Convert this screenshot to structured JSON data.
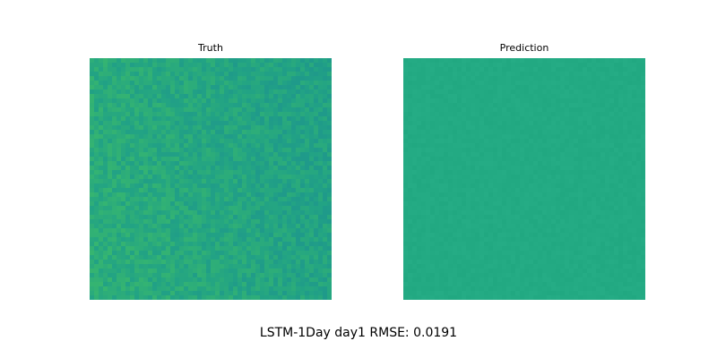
{
  "caption": "LSTM-1Day day1 RMSE: 0.0191",
  "chart_data": [
    {
      "type": "heatmap",
      "title": "Truth",
      "grid": false,
      "colormap": "viridis",
      "colors": {
        "base": "#22a384",
        "low": "#1f9a8a",
        "high": "#3cbb6a"
      }
    },
    {
      "type": "heatmap",
      "title": "Prediction",
      "grid": false,
      "colormap": "viridis",
      "colors": {
        "base": "#23aa83"
      }
    }
  ]
}
